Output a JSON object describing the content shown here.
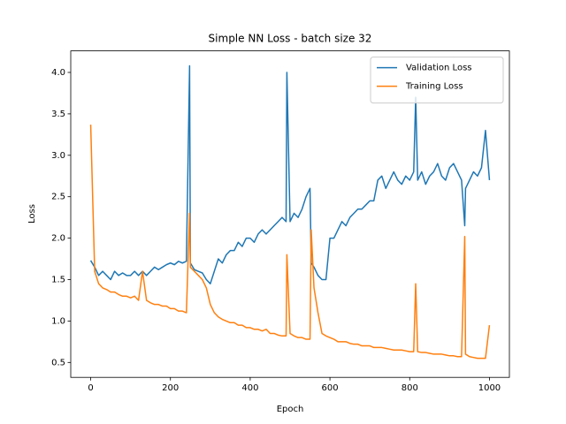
{
  "chart_data": {
    "type": "line",
    "title": "Simple NN Loss - batch size 32",
    "x_label": "Epoch",
    "y_label": "Loss",
    "x": [
      0,
      10,
      20,
      30,
      40,
      50,
      60,
      70,
      80,
      90,
      100,
      110,
      120,
      130,
      140,
      150,
      160,
      170,
      180,
      190,
      200,
      210,
      220,
      230,
      240,
      248,
      250,
      260,
      270,
      280,
      290,
      300,
      310,
      320,
      330,
      340,
      350,
      360,
      370,
      380,
      390,
      400,
      410,
      420,
      430,
      440,
      450,
      460,
      470,
      480,
      490,
      492,
      500,
      510,
      520,
      530,
      540,
      550,
      553,
      560,
      570,
      580,
      590,
      600,
      610,
      620,
      630,
      640,
      650,
      660,
      670,
      680,
      690,
      700,
      710,
      720,
      730,
      740,
      750,
      760,
      770,
      780,
      790,
      800,
      810,
      815,
      820,
      830,
      840,
      850,
      860,
      870,
      880,
      890,
      900,
      910,
      920,
      930,
      938,
      940,
      950,
      960,
      970,
      980,
      990,
      1000
    ],
    "series": [
      {
        "name": "Validation Loss",
        "color": "#1f77b4",
        "values": [
          1.73,
          1.65,
          1.55,
          1.6,
          1.55,
          1.5,
          1.6,
          1.55,
          1.58,
          1.55,
          1.55,
          1.6,
          1.55,
          1.6,
          1.55,
          1.6,
          1.65,
          1.62,
          1.65,
          1.68,
          1.7,
          1.68,
          1.72,
          1.7,
          1.72,
          4.08,
          1.7,
          1.62,
          1.6,
          1.58,
          1.5,
          1.45,
          1.6,
          1.75,
          1.7,
          1.8,
          1.85,
          1.85,
          1.95,
          1.9,
          2.0,
          2.0,
          1.95,
          2.05,
          2.1,
          2.05,
          2.1,
          2.15,
          2.2,
          2.25,
          2.2,
          4.0,
          2.2,
          2.3,
          2.25,
          2.35,
          2.5,
          2.6,
          1.7,
          1.65,
          1.55,
          1.5,
          1.5,
          2.0,
          2.0,
          2.1,
          2.2,
          2.15,
          2.25,
          2.3,
          2.35,
          2.35,
          2.4,
          2.45,
          2.45,
          2.7,
          2.75,
          2.6,
          2.7,
          2.8,
          2.7,
          2.65,
          2.75,
          2.7,
          2.8,
          3.7,
          2.7,
          2.8,
          2.65,
          2.75,
          2.8,
          2.9,
          2.75,
          2.7,
          2.85,
          2.9,
          2.8,
          2.7,
          2.15,
          2.6,
          2.7,
          2.8,
          2.75,
          2.85,
          3.3,
          2.7
        ]
      },
      {
        "name": "Training Loss",
        "color": "#ff7f0e",
        "values": [
          3.37,
          1.6,
          1.45,
          1.4,
          1.38,
          1.35,
          1.35,
          1.32,
          1.3,
          1.3,
          1.28,
          1.3,
          1.25,
          1.6,
          1.25,
          1.22,
          1.2,
          1.2,
          1.18,
          1.18,
          1.15,
          1.15,
          1.12,
          1.12,
          1.1,
          2.3,
          1.65,
          1.6,
          1.55,
          1.5,
          1.4,
          1.2,
          1.1,
          1.05,
          1.02,
          1.0,
          0.98,
          0.98,
          0.95,
          0.95,
          0.92,
          0.92,
          0.9,
          0.9,
          0.88,
          0.9,
          0.85,
          0.85,
          0.83,
          0.82,
          0.82,
          1.8,
          0.85,
          0.82,
          0.8,
          0.8,
          0.78,
          0.78,
          2.1,
          1.4,
          1.1,
          0.85,
          0.82,
          0.8,
          0.78,
          0.75,
          0.75,
          0.75,
          0.73,
          0.72,
          0.72,
          0.7,
          0.7,
          0.7,
          0.68,
          0.68,
          0.68,
          0.67,
          0.66,
          0.65,
          0.65,
          0.65,
          0.64,
          0.63,
          0.63,
          1.45,
          0.63,
          0.62,
          0.62,
          0.61,
          0.6,
          0.6,
          0.6,
          0.59,
          0.58,
          0.58,
          0.57,
          0.57,
          2.02,
          0.6,
          0.57,
          0.56,
          0.55,
          0.55,
          0.55,
          0.95
        ]
      }
    ],
    "xlim": [
      -50,
      1050
    ],
    "xticks": [
      0,
      200,
      400,
      600,
      800,
      1000
    ],
    "ylim": [
      0.32,
      4.26
    ],
    "yticks": [
      0.5,
      {
        "value": 1.0,
        "label": "1.0"
      },
      1.5,
      {
        "value": 2.0,
        "label": "2.0"
      },
      2.5,
      {
        "value": 3.0,
        "label": "3.0"
      },
      3.5,
      {
        "value": 4.0,
        "label": "4.0"
      }
    ],
    "grid": false,
    "legend": "upper right"
  }
}
